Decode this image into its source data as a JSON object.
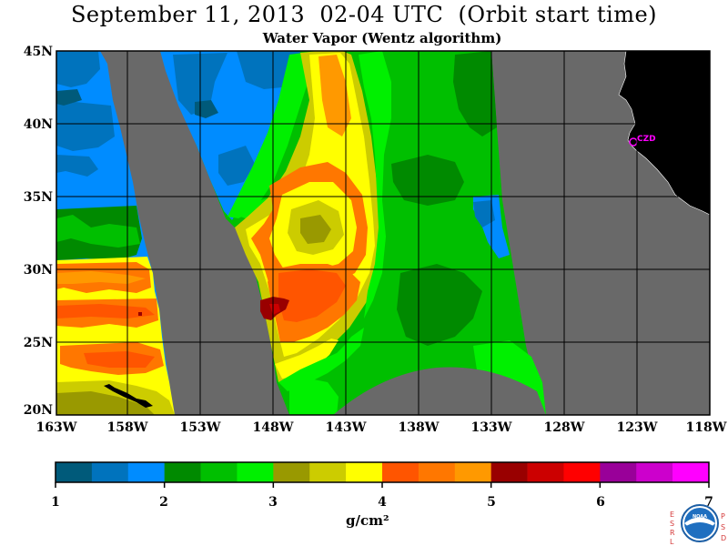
{
  "title": "September 11, 2013  02-04 UTC  (Orbit start time)",
  "subtitle": "Water Vapor (Wentz algorithm)",
  "map": {
    "lat_labels": [
      "45N",
      "40N",
      "35N",
      "30N",
      "25N",
      "20N"
    ],
    "lon_labels": [
      "163W",
      "158W",
      "153W",
      "148W",
      "143W",
      "138W",
      "133W",
      "128W",
      "123W",
      "118W"
    ],
    "station": "CZD",
    "colors": {
      "no_data": "#696969",
      "land": "#000000",
      "station": "#ff00ff",
      "grid": "#000000"
    }
  },
  "colorbar": {
    "ticks": [
      "1",
      "2",
      "3",
      "4",
      "5",
      "6",
      "7"
    ],
    "unit": "g/cm²",
    "colors": [
      "#005a7a",
      "#0073bd",
      "#008cff",
      "#008a00",
      "#00bf00",
      "#00f000",
      "#999900",
      "#cccc00",
      "#ffff00",
      "#ff5500",
      "#ff7700",
      "#ff9900",
      "#990000",
      "#cc0000",
      "#ff0000",
      "#990099",
      "#cc00cc",
      "#ff00ff"
    ]
  },
  "logo": {
    "left_letters": [
      "E",
      "S",
      "R",
      "L"
    ],
    "right_letters": [
      "P",
      "S",
      "D"
    ],
    "center_text": "NOAA"
  }
}
